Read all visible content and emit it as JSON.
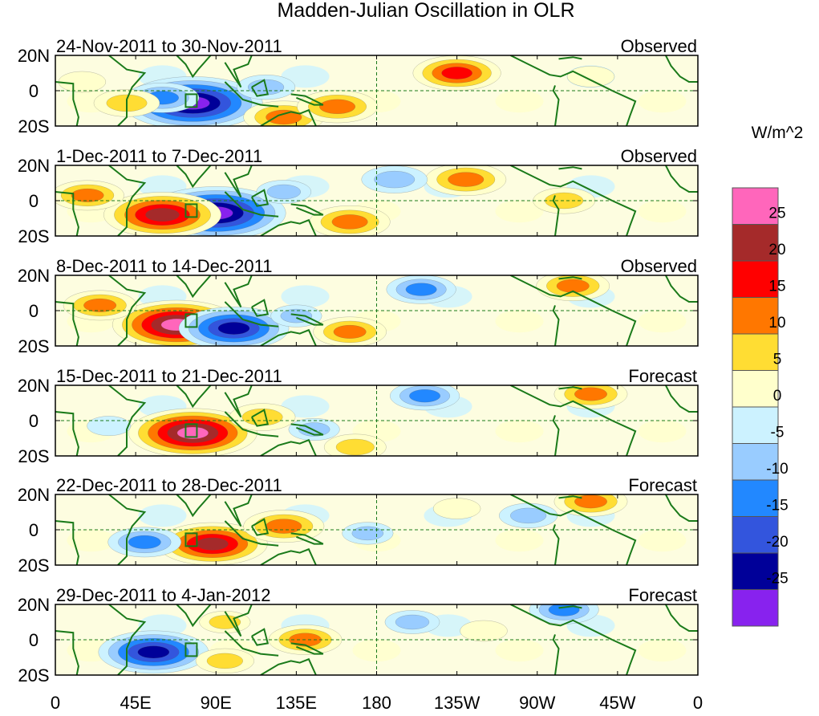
{
  "chart_data": {
    "type": "heatmap",
    "title": "Madden-Julian Oscillation in OLR",
    "units": "W/m^2",
    "x_tick_labels": [
      "0",
      "45E",
      "90E",
      "135E",
      "180",
      "135W",
      "90W",
      "45W",
      "0"
    ],
    "x_tick_lon": [
      0,
      45,
      90,
      135,
      180,
      225,
      270,
      315,
      360
    ],
    "y_tick_labels": [
      "20N",
      "0",
      "20S"
    ],
    "y_tick_lat": [
      20,
      0,
      -20
    ],
    "lon_range": [
      0,
      360
    ],
    "lat_range": [
      -20,
      20
    ],
    "colorbar": {
      "labels": [
        "25",
        "20",
        "15",
        "10",
        "5",
        "0",
        "-5",
        "-10",
        "-15",
        "-20",
        "-25"
      ],
      "colors": [
        "#ff66bb",
        "#a52a2a",
        "#ff0000",
        "#ff7700",
        "#ffdd33",
        "#ffffcc",
        "#ccf2ff",
        "#99ccff",
        "#2288ff",
        "#3355dd",
        "#000099",
        "#8822ee"
      ]
    },
    "levels": [
      -25,
      -20,
      -15,
      -10,
      -5,
      0,
      5,
      10,
      15,
      20,
      25
    ],
    "panels": [
      {
        "period": "24-Nov-2011 to 30-Nov-2011",
        "kind": "Observed",
        "anomalies": [
          {
            "lon": 77,
            "lat": -7,
            "value": -30
          },
          {
            "lon": 60,
            "lat": -4,
            "value": -12
          },
          {
            "lon": 118,
            "lat": 2,
            "value": -8
          },
          {
            "lon": 40,
            "lat": -7,
            "value": 10
          },
          {
            "lon": 128,
            "lat": -15,
            "value": 14
          },
          {
            "lon": 158,
            "lat": -9,
            "value": 14
          },
          {
            "lon": 225,
            "lat": 10,
            "value": 16
          },
          {
            "lon": 300,
            "lat": 8,
            "value": 5
          },
          {
            "lon": 15,
            "lat": 5,
            "value": 5
          }
        ]
      },
      {
        "period": "1-Dec-2011 to 7-Dec-2011",
        "kind": "Observed",
        "anomalies": [
          {
            "lon": 90,
            "lat": -7,
            "value": -30
          },
          {
            "lon": 60,
            "lat": -8,
            "value": 24
          },
          {
            "lon": 18,
            "lat": 3,
            "value": 12
          },
          {
            "lon": 165,
            "lat": -12,
            "value": 14
          },
          {
            "lon": 230,
            "lat": 12,
            "value": 14
          },
          {
            "lon": 285,
            "lat": 0,
            "value": 9
          },
          {
            "lon": 190,
            "lat": 12,
            "value": -10
          },
          {
            "lon": 128,
            "lat": 5,
            "value": -7
          }
        ]
      },
      {
        "period": "8-Dec-2011 to 14-Dec-2011",
        "kind": "Observed",
        "anomalies": [
          {
            "lon": 68,
            "lat": -8,
            "value": 27
          },
          {
            "lon": 25,
            "lat": 3,
            "value": 12
          },
          {
            "lon": 100,
            "lat": -10,
            "value": -22
          },
          {
            "lon": 135,
            "lat": -3,
            "value": -6
          },
          {
            "lon": 205,
            "lat": 12,
            "value": -11
          },
          {
            "lon": 165,
            "lat": -12,
            "value": 12
          },
          {
            "lon": 290,
            "lat": 14,
            "value": 12
          }
        ]
      },
      {
        "period": "15-Dec-2011 to 21-Dec-2011",
        "kind": "Forecast",
        "anomalies": [
          {
            "lon": 77,
            "lat": -7,
            "value": 27
          },
          {
            "lon": 116,
            "lat": 2,
            "value": 10
          },
          {
            "lon": 207,
            "lat": 14,
            "value": -11
          },
          {
            "lon": 168,
            "lat": -15,
            "value": 9
          },
          {
            "lon": 300,
            "lat": 15,
            "value": 12
          },
          {
            "lon": 145,
            "lat": -5,
            "value": -6
          },
          {
            "lon": 30,
            "lat": -3,
            "value": -4
          }
        ]
      },
      {
        "period": "22-Dec-2011 to 28-Dec-2011",
        "kind": "Forecast",
        "anomalies": [
          {
            "lon": 88,
            "lat": -8,
            "value": 22
          },
          {
            "lon": 128,
            "lat": 2,
            "value": 14
          },
          {
            "lon": 50,
            "lat": -7,
            "value": -12
          },
          {
            "lon": 175,
            "lat": -2,
            "value": -6
          },
          {
            "lon": 265,
            "lat": 8,
            "value": -8
          },
          {
            "lon": 300,
            "lat": 16,
            "value": 12
          },
          {
            "lon": 225,
            "lat": 12,
            "value": 5
          }
        ]
      },
      {
        "period": "29-Dec-2011 to 4-Jan-2012",
        "kind": "Forecast",
        "anomalies": [
          {
            "lon": 55,
            "lat": -7,
            "value": -22
          },
          {
            "lon": 140,
            "lat": 0,
            "value": 12
          },
          {
            "lon": 95,
            "lat": -12,
            "value": 8
          },
          {
            "lon": 285,
            "lat": 17,
            "value": -11
          },
          {
            "lon": 200,
            "lat": 10,
            "value": -7
          },
          {
            "lon": 95,
            "lat": 10,
            "value": 6
          },
          {
            "lon": 240,
            "lat": 5,
            "value": 5
          }
        ]
      }
    ]
  }
}
